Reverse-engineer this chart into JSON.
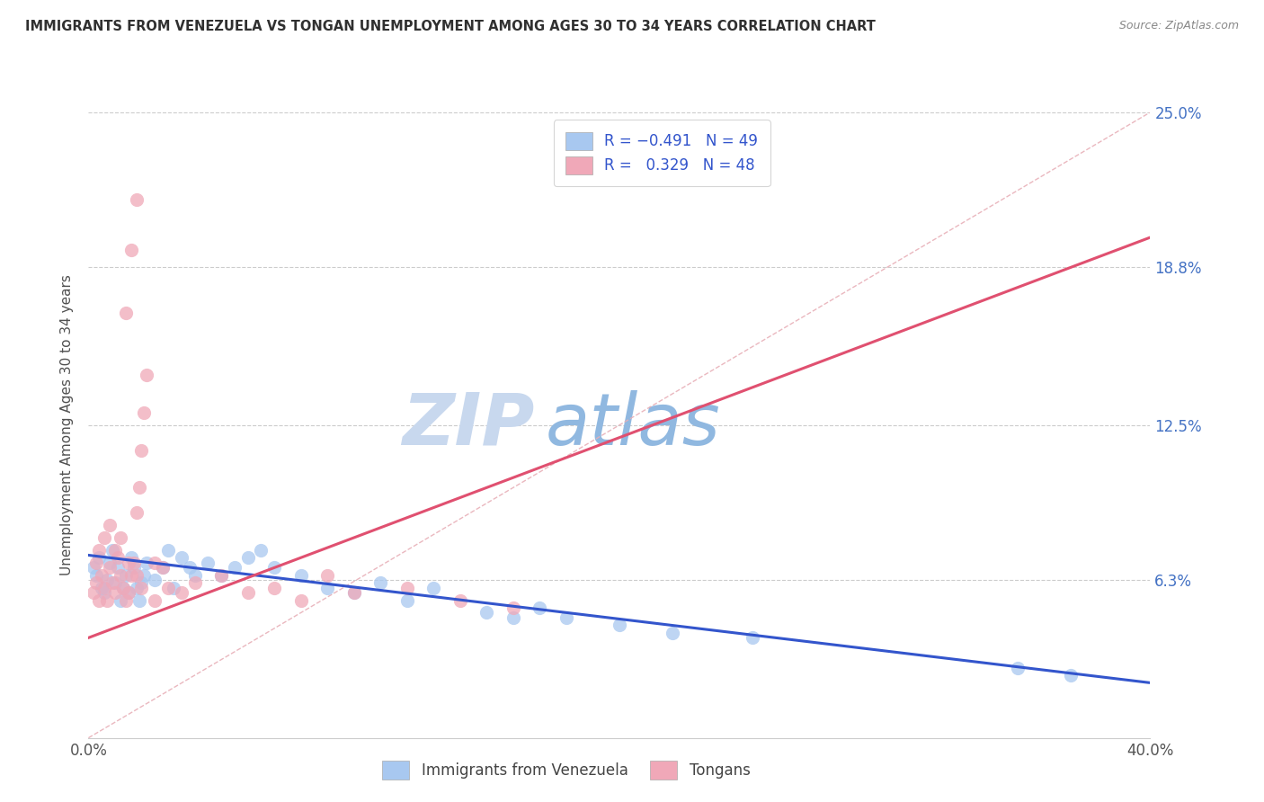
{
  "title": "IMMIGRANTS FROM VENEZUELA VS TONGAN UNEMPLOYMENT AMONG AGES 30 TO 34 YEARS CORRELATION CHART",
  "source_text": "Source: ZipAtlas.com",
  "ylabel": "Unemployment Among Ages 30 to 34 years",
  "xlim": [
    0.0,
    0.42
  ],
  "ylim": [
    -0.01,
    0.27
  ],
  "plot_xlim": [
    0.0,
    0.4
  ],
  "plot_ylim": [
    0.0,
    0.25
  ],
  "yticks": [
    0.063,
    0.125,
    0.188,
    0.25
  ],
  "ytick_labels": [
    "6.3%",
    "12.5%",
    "18.8%",
    "25.0%"
  ],
  "xticks": [
    0.0,
    0.4
  ],
  "xtick_labels": [
    "0.0%",
    "40.0%"
  ],
  "blue_color": "#a8c8f0",
  "pink_color": "#f0a8b8",
  "trend_blue": "#3355cc",
  "trend_pink": "#e05070",
  "diag_color": "#e8b0b8",
  "watermark_zip_color": "#c8d8ee",
  "watermark_atlas_color": "#90b8e0",
  "title_color": "#303030",
  "right_label_color": "#4472c4",
  "ylabel_color": "#505050",
  "grid_color": "#cccccc",
  "background_color": "#ffffff",
  "figsize": [
    14.06,
    8.92
  ],
  "blue_scatter": [
    [
      0.002,
      0.068
    ],
    [
      0.003,
      0.065
    ],
    [
      0.004,
      0.072
    ],
    [
      0.005,
      0.06
    ],
    [
      0.006,
      0.058
    ],
    [
      0.007,
      0.063
    ],
    [
      0.008,
      0.07
    ],
    [
      0.009,
      0.075
    ],
    [
      0.01,
      0.062
    ],
    [
      0.011,
      0.068
    ],
    [
      0.012,
      0.055
    ],
    [
      0.013,
      0.06
    ],
    [
      0.014,
      0.065
    ],
    [
      0.015,
      0.058
    ],
    [
      0.016,
      0.072
    ],
    [
      0.017,
      0.068
    ],
    [
      0.018,
      0.06
    ],
    [
      0.019,
      0.055
    ],
    [
      0.02,
      0.062
    ],
    [
      0.021,
      0.065
    ],
    [
      0.022,
      0.07
    ],
    [
      0.025,
      0.063
    ],
    [
      0.028,
      0.068
    ],
    [
      0.03,
      0.075
    ],
    [
      0.032,
      0.06
    ],
    [
      0.035,
      0.072
    ],
    [
      0.038,
      0.068
    ],
    [
      0.04,
      0.065
    ],
    [
      0.045,
      0.07
    ],
    [
      0.05,
      0.065
    ],
    [
      0.055,
      0.068
    ],
    [
      0.06,
      0.072
    ],
    [
      0.065,
      0.075
    ],
    [
      0.07,
      0.068
    ],
    [
      0.08,
      0.065
    ],
    [
      0.09,
      0.06
    ],
    [
      0.1,
      0.058
    ],
    [
      0.11,
      0.062
    ],
    [
      0.12,
      0.055
    ],
    [
      0.13,
      0.06
    ],
    [
      0.15,
      0.05
    ],
    [
      0.16,
      0.048
    ],
    [
      0.17,
      0.052
    ],
    [
      0.18,
      0.048
    ],
    [
      0.2,
      0.045
    ],
    [
      0.22,
      0.042
    ],
    [
      0.25,
      0.04
    ],
    [
      0.35,
      0.028
    ],
    [
      0.37,
      0.025
    ]
  ],
  "pink_scatter": [
    [
      0.002,
      0.058
    ],
    [
      0.003,
      0.062
    ],
    [
      0.004,
      0.055
    ],
    [
      0.005,
      0.065
    ],
    [
      0.006,
      0.06
    ],
    [
      0.007,
      0.055
    ],
    [
      0.008,
      0.068
    ],
    [
      0.009,
      0.062
    ],
    [
      0.01,
      0.058
    ],
    [
      0.011,
      0.072
    ],
    [
      0.012,
      0.065
    ],
    [
      0.013,
      0.06
    ],
    [
      0.014,
      0.055
    ],
    [
      0.015,
      0.058
    ],
    [
      0.016,
      0.065
    ],
    [
      0.017,
      0.07
    ],
    [
      0.018,
      0.09
    ],
    [
      0.019,
      0.1
    ],
    [
      0.02,
      0.115
    ],
    [
      0.021,
      0.13
    ],
    [
      0.022,
      0.145
    ],
    [
      0.003,
      0.07
    ],
    [
      0.004,
      0.075
    ],
    [
      0.006,
      0.08
    ],
    [
      0.008,
      0.085
    ],
    [
      0.01,
      0.075
    ],
    [
      0.012,
      0.08
    ],
    [
      0.015,
      0.07
    ],
    [
      0.018,
      0.065
    ],
    [
      0.02,
      0.06
    ],
    [
      0.025,
      0.055
    ],
    [
      0.03,
      0.06
    ],
    [
      0.035,
      0.058
    ],
    [
      0.04,
      0.062
    ],
    [
      0.05,
      0.065
    ],
    [
      0.06,
      0.058
    ],
    [
      0.07,
      0.06
    ],
    [
      0.08,
      0.055
    ],
    [
      0.09,
      0.065
    ],
    [
      0.1,
      0.058
    ],
    [
      0.12,
      0.06
    ],
    [
      0.14,
      0.055
    ],
    [
      0.16,
      0.052
    ],
    [
      0.014,
      0.17
    ],
    [
      0.016,
      0.195
    ],
    [
      0.018,
      0.215
    ],
    [
      0.025,
      0.07
    ],
    [
      0.028,
      0.068
    ]
  ],
  "blue_trend_x": [
    0.0,
    0.4
  ],
  "blue_trend_y": [
    0.073,
    0.022
  ],
  "pink_trend_x": [
    0.0,
    0.4
  ],
  "pink_trend_y": [
    0.04,
    0.2
  ]
}
